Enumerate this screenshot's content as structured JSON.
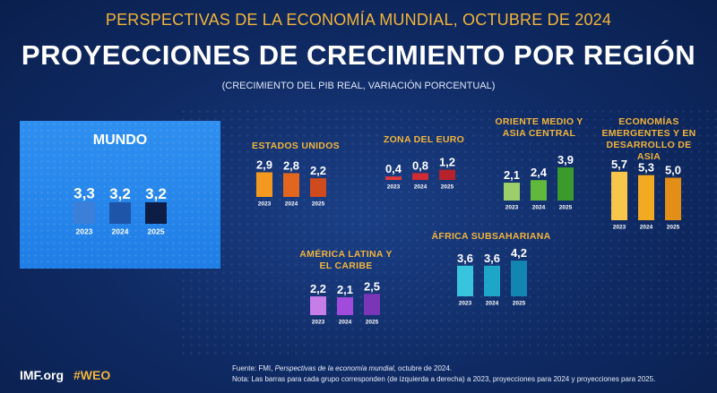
{
  "header": {
    "top": "PERSPECTIVAS DE LA ECONOMÍA MUNDIAL, OCTUBRE DE 2024",
    "title": "PROYECCIONES DE CRECIMIENTO POR REGIÓN",
    "subtitle": "(CRECIMIENTO DEL PIB REAL, VARIACIÓN PORCENTUAL)"
  },
  "footer": {
    "logo": "IMF.org",
    "hashtag": "#WEO",
    "source_prefix": "Fuente: FMI, ",
    "source_title": "Perspectivas de la economía mundial",
    "source_suffix": ", octubre de 2024.",
    "note": "Nota: Las barras para cada grupo corresponden (de izquierda a derecha) a 2023, proyecciones para 2024 y proyecciones para 2025."
  },
  "chart_data": [
    {
      "id": "mundo",
      "type": "bar",
      "title": "MUNDO",
      "categories": [
        "2023",
        "2024",
        "2025"
      ],
      "values": [
        3.3,
        3.2,
        3.2
      ],
      "value_labels": [
        "3,3",
        "3,2",
        "3,2"
      ],
      "colors": [
        "#3b7fd9",
        "#1f55a8",
        "#0e1d45"
      ]
    },
    {
      "id": "eeuu",
      "type": "bar",
      "title": "ESTADOS UNIDOS",
      "categories": [
        "2023",
        "2024",
        "2025"
      ],
      "values": [
        2.9,
        2.8,
        2.2
      ],
      "value_labels": [
        "2,9",
        "2,8",
        "2,2"
      ],
      "colors": [
        "#f29a1f",
        "#e3661e",
        "#cf4a1d"
      ]
    },
    {
      "id": "euro",
      "type": "bar",
      "title": "ZONA DEL EURO",
      "categories": [
        "2023",
        "2024",
        "2025"
      ],
      "values": [
        0.4,
        0.8,
        1.2
      ],
      "value_labels": [
        "0,4",
        "0,8",
        "1,2"
      ],
      "colors": [
        "#e23a3a",
        "#d12c33",
        "#b5222c"
      ]
    },
    {
      "id": "oriente",
      "type": "bar",
      "title": "ORIENTE MEDIO Y ASIA CENTRAL",
      "categories": [
        "2023",
        "2024",
        "2025"
      ],
      "values": [
        2.1,
        2.4,
        3.9
      ],
      "value_labels": [
        "2,1",
        "2,4",
        "3,9"
      ],
      "colors": [
        "#9ccf6a",
        "#61b93b",
        "#3a9a2b"
      ]
    },
    {
      "id": "asia",
      "type": "bar",
      "title": "ECONOMÍAS EMERGENTES Y EN DESARROLLO DE ASIA",
      "categories": [
        "2023",
        "2024",
        "2025"
      ],
      "values": [
        5.7,
        5.3,
        5.0
      ],
      "value_labels": [
        "5,7",
        "5,3",
        "5,0"
      ],
      "colors": [
        "#f7c64a",
        "#f2aa22",
        "#e38e16"
      ]
    },
    {
      "id": "latam",
      "type": "bar",
      "title": "AMÉRICA LATINA Y EL CARIBE",
      "categories": [
        "2023",
        "2024",
        "2025"
      ],
      "values": [
        2.2,
        2.1,
        2.5
      ],
      "value_labels": [
        "2,2",
        "2,1",
        "2,5"
      ],
      "colors": [
        "#c77de8",
        "#a04bdc",
        "#7b36b8"
      ]
    },
    {
      "id": "africa",
      "type": "bar",
      "title": "ÁFRICA SUBSAHARIANA",
      "categories": [
        "2023",
        "2024",
        "2025"
      ],
      "values": [
        3.6,
        3.6,
        4.2
      ],
      "value_labels": [
        "3,6",
        "3,6",
        "4,2"
      ],
      "colors": [
        "#39c4dd",
        "#1ea6c8",
        "#1285b0"
      ]
    }
  ]
}
